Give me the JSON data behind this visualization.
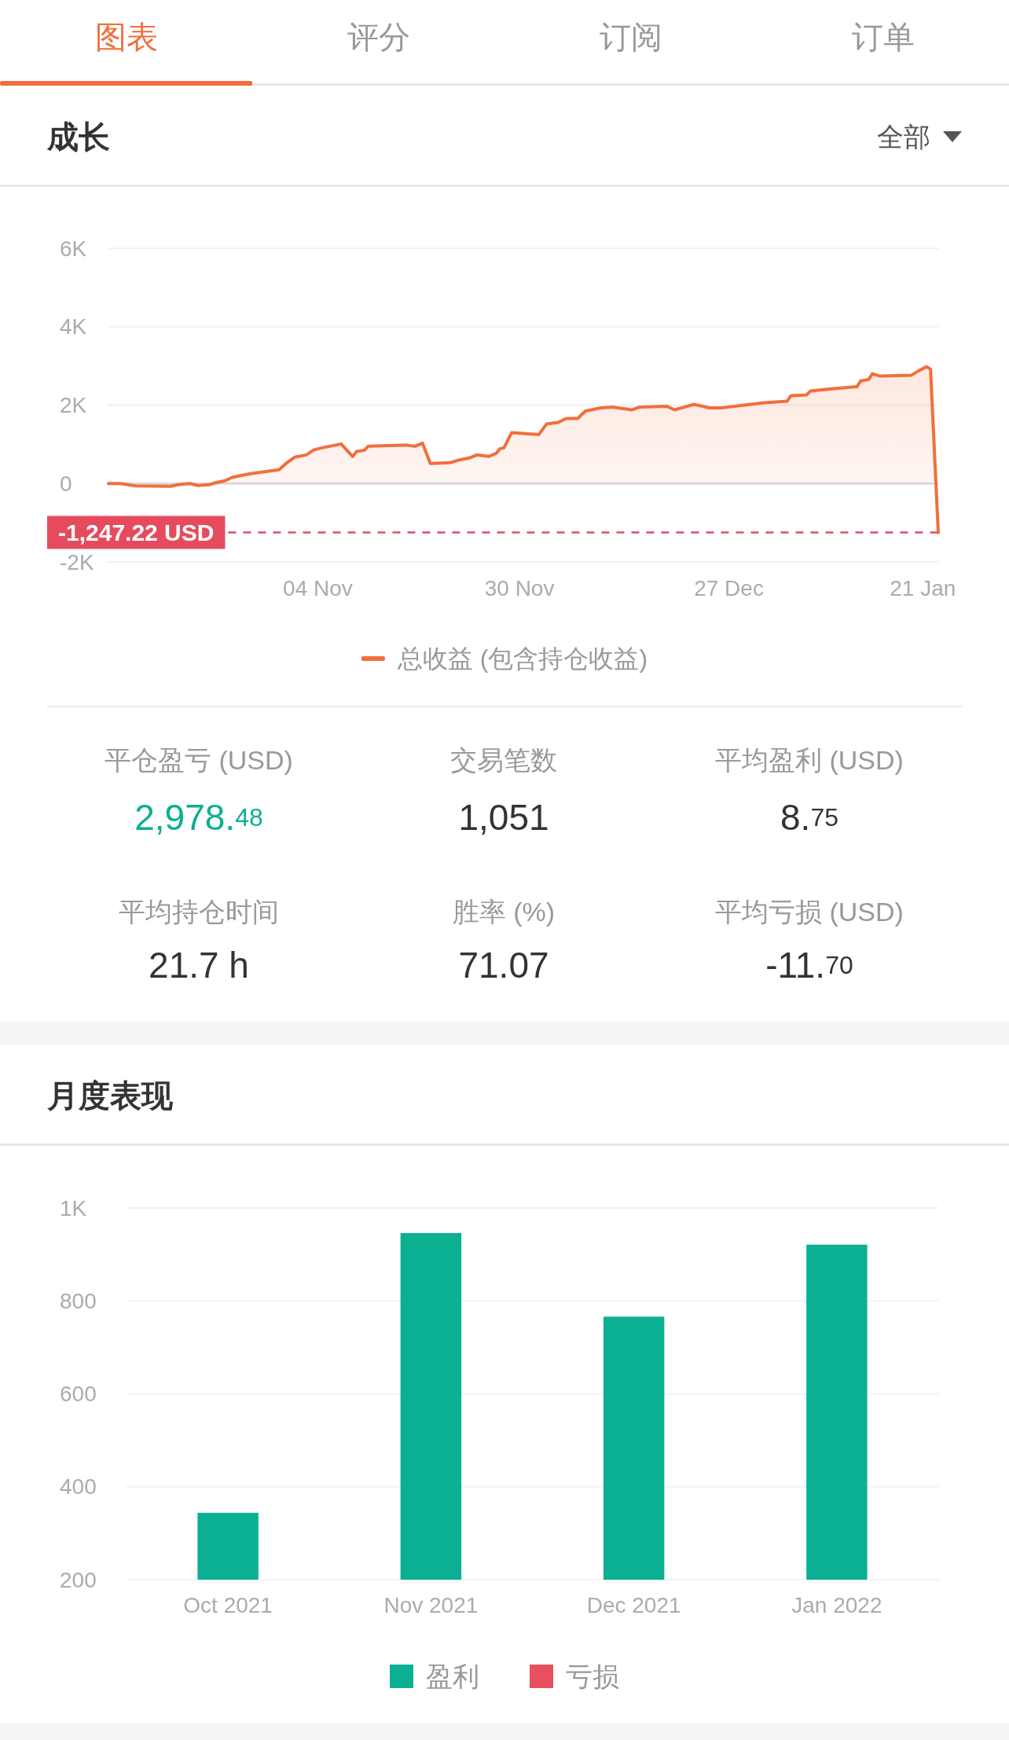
{
  "chart_data": [
    {
      "type": "other",
      "annotations": [
        "图表",
        "评分",
        "订阅",
        "订单"
      ]
    },
    {
      "type": "area",
      "title": "成长",
      "annotations": [
        "全部"
      ],
      "x": [
        "2021-10-08",
        "2021-10-09T12:00",
        "2021-10-11T12:00",
        "2021-10-16",
        "2021-10-17",
        "2021-10-18T12:00",
        "2021-10-19T12:00",
        "2021-10-21",
        "2021-10-22",
        "2021-10-23",
        "2021-10-24",
        "2021-10-26",
        "2021-10-27",
        "2021-10-30",
        "2021-10-31",
        "2021-11-01",
        "2021-11-02T12:00",
        "2021-11-03T12:00",
        "2021-11-04T12:00",
        "2021-11-07",
        "2021-11-08T12:00",
        "2021-11-09",
        "2021-11-10",
        "2021-11-10T12:00",
        "2021-11-15T12:00",
        "2021-11-16T12:00",
        "2021-11-17T12:00",
        "2021-11-18T12:00",
        "2021-11-21",
        "2021-11-22",
        "2021-11-23T12:00",
        "2021-11-24T12:00",
        "2021-11-26",
        "2021-11-27",
        "2021-11-27T12:00",
        "2021-11-28",
        "2021-11-29",
        "2021-12-02T12:00",
        "2021-12-03T12:00",
        "2021-12-05",
        "2021-12-06",
        "2021-12-07T12:00",
        "2021-12-08T12:00",
        "2021-12-10T12:00",
        "2021-12-12",
        "2021-12-14T12:00",
        "2021-12-15T12:00",
        "2021-12-19",
        "2021-12-20",
        "2021-12-22T12:00",
        "2021-12-24T12:00",
        "2021-12-26",
        "2021-12-31T12:00",
        "2022-01-03T12:00",
        "2022-01-04",
        "2022-01-06",
        "2022-01-06T12:00",
        "2022-01-09T12:00",
        "2022-01-12T12:00",
        "2022-01-13",
        "2022-01-14",
        "2022-01-14T12:00",
        "2022-01-15T12:00",
        "2022-01-19T12:00",
        "2022-01-20T12:00",
        "2022-01-21T12:00",
        "2022-01-22",
        "2022-01-23"
      ],
      "series": [
        {
          "name": "总收益 (包含持仓收益)",
          "color": "#f26e3c",
          "values": [
            0,
            0,
            -60,
            -70,
            -30,
            0,
            -50,
            -30,
            30,
            70,
            160,
            240,
            270,
            350,
            530,
            670,
            730,
            860,
            910,
            1010,
            690,
            820,
            850,
            950,
            980,
            950,
            1030,
            510,
            530,
            590,
            650,
            730,
            690,
            770,
            890,
            910,
            1300,
            1250,
            1520,
            1560,
            1660,
            1660,
            1850,
            1930,
            1950,
            1880,
            1950,
            1970,
            1880,
            2020,
            1930,
            1930,
            2060,
            2100,
            2240,
            2260,
            2360,
            2420,
            2470,
            2620,
            2650,
            2800,
            2740,
            2760,
            2880,
            2980,
            2920,
            -1250
          ]
        }
      ],
      "xlim": [
        "2021-10-08",
        "2022-01-23"
      ],
      "xticks": [
        {
          "value": "2021-11-04",
          "label": "04 Nov"
        },
        {
          "value": "2021-11-30",
          "label": "30 Nov"
        },
        {
          "value": "2021-12-27",
          "label": "27 Dec"
        },
        {
          "value": "2022-01-21",
          "label": "21 Jan"
        }
      ],
      "ylim": [
        -2000,
        6000
      ],
      "yticks": [
        {
          "value": -2000,
          "label": "-2K"
        },
        0,
        {
          "value": 2000,
          "label": "2K"
        },
        {
          "value": 4000,
          "label": "4K"
        },
        {
          "value": 6000,
          "label": "6K"
        }
      ],
      "grid": "y",
      "legend": "bottom",
      "ref_lines": [
        {
          "axis": "y",
          "value": -1247.22,
          "label": "-1,247.22 USD",
          "color": "#e64b5d",
          "line_style": "dashed"
        }
      ]
    },
    {
      "type": "other",
      "annotations": [
        "平仓盈亏 (USD)",
        "2,978.48",
        "交易笔数",
        "1,051",
        "平均盈利 (USD)",
        "8.75",
        "平均持仓时间",
        "21.7 h",
        "胜率 (%)",
        "71.07",
        "平均亏损 (USD)",
        "-11.70"
      ]
    },
    {
      "type": "bar",
      "title": "月度表现",
      "categories": [
        "Oct 2021",
        "Nov 2021",
        "Dec 2021",
        "Jan 2022"
      ],
      "series": [
        {
          "name": "盈利",
          "color": "#0bb092",
          "values": [
            344,
            946,
            766,
            921
          ]
        },
        {
          "name": "亏损",
          "color": "#e9505d",
          "values": [
            null,
            null,
            null,
            null
          ]
        }
      ],
      "stacked": true,
      "ylim": [
        200,
        1000
      ],
      "yticks": [
        {
          "value": 1000,
          "label": "1K"
        },
        800,
        600,
        400,
        200
      ],
      "grid": "y",
      "legend": "bottom"
    }
  ]
}
